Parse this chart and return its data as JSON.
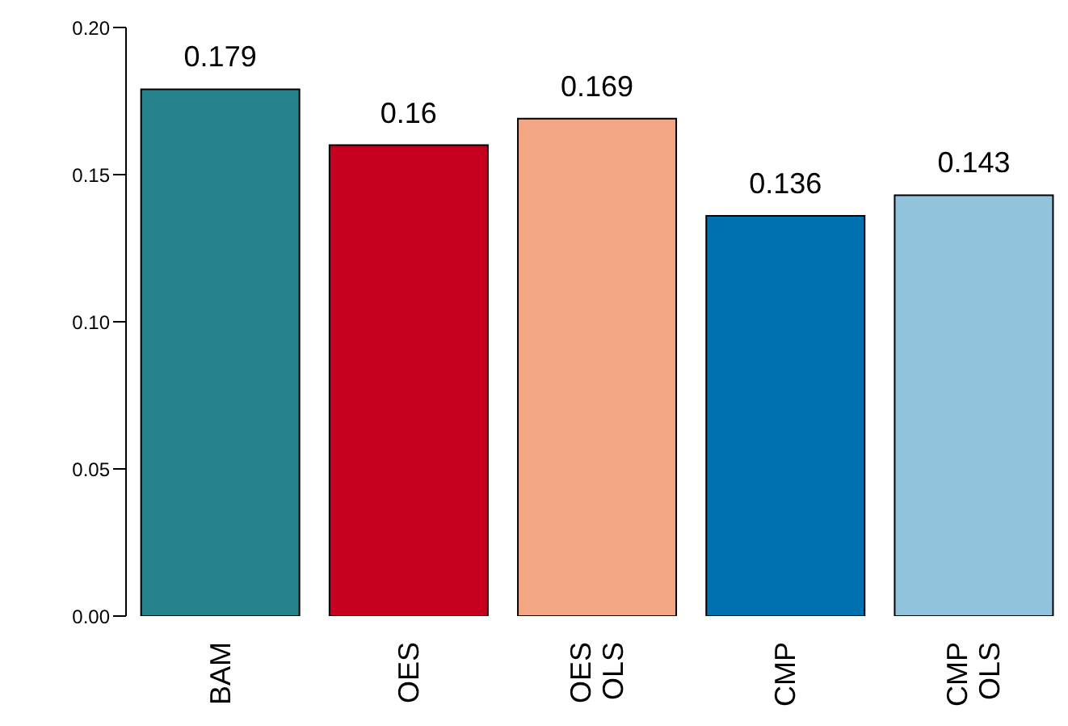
{
  "chart_data": {
    "type": "bar",
    "categories": [
      "BAM",
      "OES",
      "OES\nOLS",
      "CMP",
      "CMP\nOLS"
    ],
    "values": [
      0.179,
      0.16,
      0.169,
      0.136,
      0.143
    ],
    "colors": [
      "#26838b",
      "#c8001f",
      "#f2a683",
      "#0071b0",
      "#92c3dd"
    ],
    "ylim": [
      0,
      0.2
    ],
    "yticks": [
      {
        "value": 0,
        "label": "0.00"
      },
      {
        "value": 0.05,
        "label": "0.05"
      },
      {
        "value": 0.1,
        "label": "0.10"
      },
      {
        "value": 0.15,
        "label": "0.15"
      },
      {
        "value": 0.2,
        "label": "0.20"
      }
    ],
    "data_labels": true,
    "grid": false,
    "legend": false
  }
}
